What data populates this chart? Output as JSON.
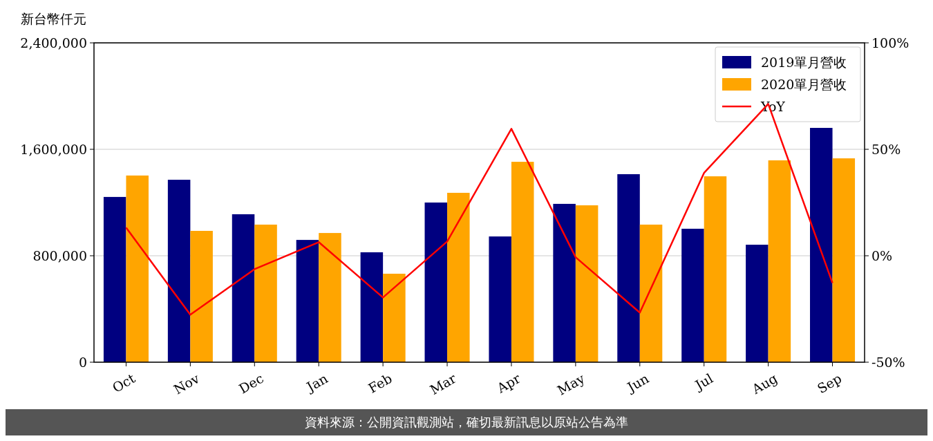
{
  "chart_data": {
    "type": "bar",
    "ylabel": "新台幣仟元",
    "categories": [
      "Oct",
      "Nov",
      "Dec",
      "Jan",
      "Feb",
      "Mar",
      "Apr",
      "May",
      "Jun",
      "Jul",
      "Aug",
      "Sep"
    ],
    "series": [
      {
        "name": "2019單月營收",
        "color": "#000080",
        "values": [
          1242000,
          1371000,
          1112000,
          919000,
          826000,
          1200000,
          945000,
          1190000,
          1413000,
          1003000,
          883000,
          1761000
        ]
      },
      {
        "name": "2020單月營收",
        "color": "#ffa500",
        "values": [
          1403000,
          987000,
          1034000,
          971000,
          665000,
          1273000,
          1506000,
          1179000,
          1034000,
          1397000,
          1517000,
          1532000
        ]
      },
      {
        "name": "YoY",
        "type": "line",
        "axis": "y2",
        "color": "#ff0000",
        "values": [
          13.2,
          -27.7,
          -6.3,
          6.4,
          -19.6,
          6.7,
          59.6,
          -0.7,
          -26.7,
          38.9,
          71.3,
          -12.8
        ]
      }
    ],
    "ylim": [
      0,
      2400000
    ],
    "yticks": [
      {
        "value": 0,
        "label": "0"
      },
      {
        "value": 800000,
        "label": "800,000"
      },
      {
        "value": 1600000,
        "label": "1,600,000"
      },
      {
        "value": 2400000,
        "label": "2,400,000"
      }
    ],
    "y2lim": [
      -50,
      100
    ],
    "y2ticks": [
      {
        "value": -50,
        "label": "-50%"
      },
      {
        "value": 0,
        "label": "0%"
      },
      {
        "value": 50,
        "label": "50%"
      },
      {
        "value": 100,
        "label": "100%"
      }
    ],
    "grid": "y",
    "legend": "top right",
    "annotations": [
      "資料來源：公開資訊觀測站，確切最新訊息以原站公告為準"
    ]
  }
}
